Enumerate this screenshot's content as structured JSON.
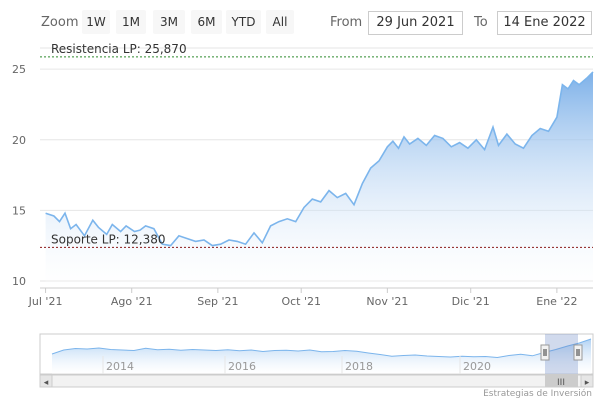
{
  "toolbar": {
    "zoom_label": "Zoom",
    "zoom_buttons": [
      "1W",
      "1M",
      "3M",
      "6M",
      "YTD",
      "All"
    ],
    "from_label": "From",
    "from_value": "29 Jun 2021",
    "to_label": "To",
    "to_value": "14 Ene 2022"
  },
  "chart_data": {
    "type": "area",
    "title": "",
    "xlabel": "",
    "ylabel": "",
    "ylim": [
      9.5,
      26.5
    ],
    "yticks": [
      10,
      15,
      20,
      25
    ],
    "x_ticks": [
      "Jul '21",
      "Ago '21",
      "Sep '21",
      "Oct '21",
      "Nov '21",
      "Dic '21",
      "Ene '22"
    ],
    "x_range": [
      "2021-06-29",
      "2022-01-14"
    ],
    "series": [
      {
        "x": [
          "2021-07-01",
          "2021-07-04",
          "2021-07-06",
          "2021-07-08",
          "2021-07-10",
          "2021-07-12",
          "2021-07-15",
          "2021-07-18",
          "2021-07-20",
          "2021-07-23",
          "2021-07-25",
          "2021-07-28",
          "2021-07-30",
          "2021-08-02",
          "2021-08-04",
          "2021-08-06",
          "2021-08-09",
          "2021-08-12",
          "2021-08-15",
          "2021-08-18",
          "2021-08-21",
          "2021-08-24",
          "2021-08-27",
          "2021-08-30",
          "2021-09-02",
          "2021-09-05",
          "2021-09-08",
          "2021-09-11",
          "2021-09-14",
          "2021-09-17",
          "2021-09-20",
          "2021-09-23",
          "2021-09-26",
          "2021-09-29",
          "2021-10-02",
          "2021-10-05",
          "2021-10-08",
          "2021-10-11",
          "2021-10-14",
          "2021-10-17",
          "2021-10-20",
          "2021-10-23",
          "2021-10-26",
          "2021-10-29",
          "2021-11-01",
          "2021-11-03",
          "2021-11-05",
          "2021-11-07",
          "2021-11-09",
          "2021-11-12",
          "2021-11-15",
          "2021-11-18",
          "2021-11-21",
          "2021-11-24",
          "2021-11-27",
          "2021-11-30",
          "2021-12-03",
          "2021-12-06",
          "2021-12-09",
          "2021-12-11",
          "2021-12-14",
          "2021-12-17",
          "2021-12-20",
          "2021-12-23",
          "2021-12-26",
          "2021-12-29",
          "2022-01-01",
          "2022-01-03",
          "2022-01-05",
          "2022-01-07",
          "2022-01-09",
          "2022-01-12",
          "2022-01-14"
        ],
        "values": [
          14.8,
          14.6,
          14.2,
          14.8,
          13.7,
          14.0,
          13.2,
          14.3,
          13.8,
          13.3,
          14.0,
          13.5,
          13.9,
          13.5,
          13.6,
          13.9,
          13.7,
          12.6,
          12.5,
          13.2,
          13.0,
          12.8,
          12.9,
          12.5,
          12.6,
          12.9,
          12.8,
          12.6,
          13.4,
          12.7,
          13.9,
          14.2,
          14.4,
          14.2,
          15.2,
          15.8,
          15.6,
          16.4,
          15.9,
          16.2,
          15.4,
          16.9,
          18.0,
          18.5,
          19.5,
          19.9,
          19.4,
          20.2,
          19.7,
          20.1,
          19.6,
          20.3,
          20.1,
          19.5,
          19.8,
          19.4,
          20.0,
          19.3,
          20.9,
          19.6,
          20.4,
          19.7,
          19.4,
          20.3,
          20.8,
          20.6,
          21.6,
          23.9,
          23.6,
          24.2,
          23.9,
          24.4,
          24.8
        ]
      }
    ],
    "plot_lines": [
      {
        "label": "Resistencia LP: 25,870",
        "value": 25.87,
        "color": "#2e8b2e"
      },
      {
        "label": "Soporte LP: 12,380",
        "value": 12.38,
        "color": "#8b1a1a"
      }
    ],
    "navigator": {
      "year_labels": [
        "2014",
        "2016",
        "2018",
        "2020"
      ],
      "values": [
        8.0,
        9.6,
        10.2,
        10.0,
        10.4,
        9.8,
        9.6,
        9.4,
        10.3,
        9.7,
        9.9,
        9.5,
        9.8,
        9.6,
        9.4,
        9.7,
        9.3,
        9.6,
        9.0,
        9.4,
        9.5,
        9.2,
        9.6,
        8.9,
        9.0,
        9.4,
        9.1,
        8.4,
        7.8,
        7.1,
        7.4,
        7.6,
        7.2,
        7.0,
        6.8,
        7.1,
        6.9,
        7.0,
        6.6,
        7.4,
        7.9,
        7.3,
        8.6,
        9.8,
        11.2,
        12.4,
        14.0
      ]
    },
    "grid": true,
    "legend": "none"
  },
  "credits": "Estrategias de Inversión",
  "colors": {
    "line": "#7cb5ec",
    "fill_top": "#6fa8e6",
    "fill_bottom": "#ffffff",
    "grid": "#e6e6e6",
    "axis_label": "#666666"
  },
  "icons": {
    "scroll_left": "◂",
    "scroll_right": "▸",
    "scroll_grip": "III"
  }
}
